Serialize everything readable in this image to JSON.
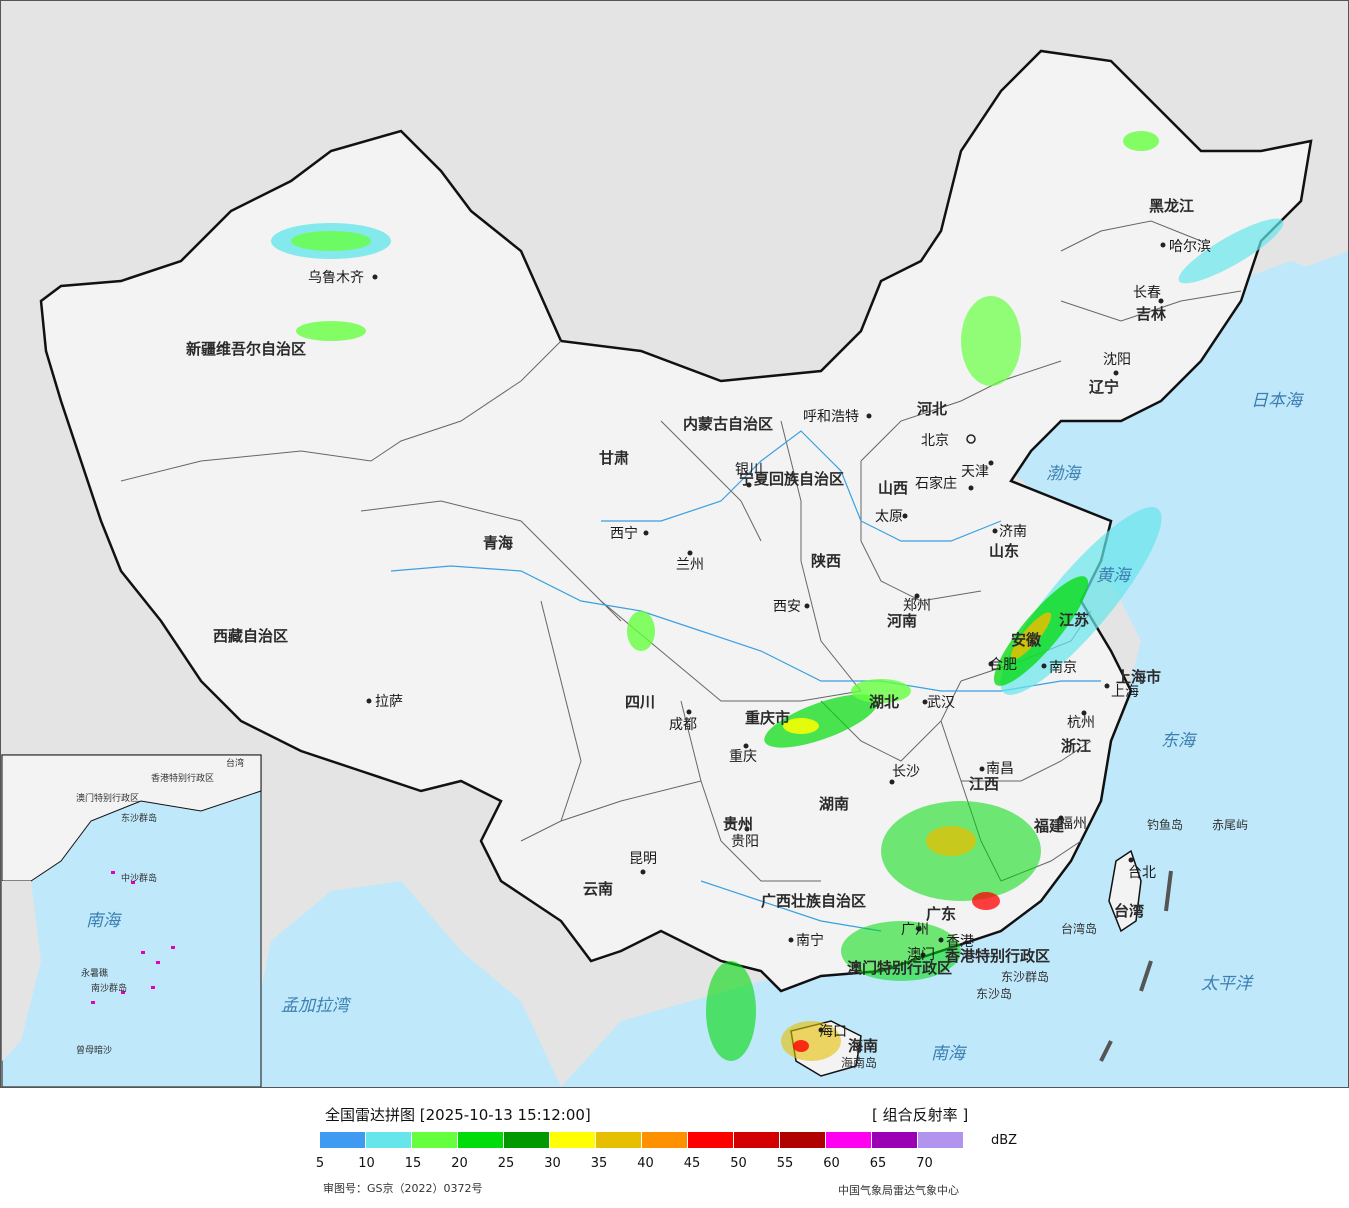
{
  "legend": {
    "title": "全国雷达拼图 [2025-10-13 15:12:00]",
    "product": "[ 组合反射率 ]",
    "unit": "dBZ",
    "review_number": "审图号：GS京（2022）0372号",
    "source": "中国气象局雷达气象中心",
    "scale_colors": [
      "#3e9bf0",
      "#66e6ea",
      "#66ff40",
      "#00db0a",
      "#009a00",
      "#ffff00",
      "#e6c000",
      "#ff9000",
      "#ff0000",
      "#d20000",
      "#b00000",
      "#ff00f0",
      "#9a00b4",
      "#b294ee"
    ],
    "scale_ticks": [
      "5",
      "10",
      "15",
      "20",
      "25",
      "30",
      "35",
      "40",
      "45",
      "50",
      "55",
      "60",
      "65",
      "70"
    ]
  },
  "cities": [
    {
      "name": "乌鲁木齐"
    },
    {
      "name": "拉萨"
    },
    {
      "name": "西宁"
    },
    {
      "name": "兰州"
    },
    {
      "name": "银川"
    },
    {
      "name": "呼和浩特"
    },
    {
      "name": "北京"
    },
    {
      "name": "天津"
    },
    {
      "name": "石家庄"
    },
    {
      "name": "太原"
    },
    {
      "name": "济南"
    },
    {
      "name": "郑州"
    },
    {
      "name": "西安"
    },
    {
      "name": "成都"
    },
    {
      "name": "重庆"
    },
    {
      "name": "武汉"
    },
    {
      "name": "合肥"
    },
    {
      "name": "南京"
    },
    {
      "name": "上海"
    },
    {
      "name": "杭州"
    },
    {
      "name": "南昌"
    },
    {
      "name": "长沙"
    },
    {
      "name": "贵阳"
    },
    {
      "name": "昆明"
    },
    {
      "name": "南宁"
    },
    {
      "name": "广州"
    },
    {
      "name": "福州"
    },
    {
      "name": "台北"
    },
    {
      "name": "海口"
    },
    {
      "name": "沈阳"
    },
    {
      "name": "长春"
    },
    {
      "name": "哈尔滨"
    },
    {
      "name": "香港"
    },
    {
      "name": "澳门"
    }
  ],
  "provinces": [
    {
      "name": "新疆维吾尔自治区"
    },
    {
      "name": "西藏自治区"
    },
    {
      "name": "青海"
    },
    {
      "name": "甘肃"
    },
    {
      "name": "内蒙古自治区"
    },
    {
      "name": "黑龙江"
    },
    {
      "name": "吉林"
    },
    {
      "name": "辽宁"
    },
    {
      "name": "河北"
    },
    {
      "name": "山西"
    },
    {
      "name": "山东"
    },
    {
      "name": "河南"
    },
    {
      "name": "陕西"
    },
    {
      "name": "四川"
    },
    {
      "name": "重庆市"
    },
    {
      "name": "湖北"
    },
    {
      "name": "安徽"
    },
    {
      "name": "江苏"
    },
    {
      "name": "上海市"
    },
    {
      "name": "浙江"
    },
    {
      "name": "江西"
    },
    {
      "name": "湖南"
    },
    {
      "name": "贵州"
    },
    {
      "name": "云南"
    },
    {
      "name": "广西壮族自治区"
    },
    {
      "name": "广东"
    },
    {
      "name": "福建"
    },
    {
      "name": "台湾"
    },
    {
      "name": "海南"
    },
    {
      "name": "宁夏回族自治区"
    },
    {
      "name": "香港特别行政区"
    },
    {
      "name": "澳门特别行政区"
    }
  ],
  "seas": [
    {
      "name": "日本海"
    },
    {
      "name": "渤海"
    },
    {
      "name": "黄海"
    },
    {
      "name": "东海"
    },
    {
      "name": "南海"
    },
    {
      "name": "太平洋"
    },
    {
      "name": "孟加拉湾"
    }
  ],
  "islands": [
    {
      "name": "钓鱼岛"
    },
    {
      "name": "赤尾屿"
    },
    {
      "name": "台湾岛"
    },
    {
      "name": "东沙群岛"
    },
    {
      "name": "东沙岛"
    },
    {
      "name": "海南岛"
    }
  ],
  "inset": {
    "sea": "南海",
    "labels": [
      "中沙群岛",
      "南沙群岛",
      "东沙群岛",
      "香港特别行政区",
      "澳门特别行政区",
      "台湾",
      "曾母暗沙",
      "永暑礁"
    ]
  }
}
